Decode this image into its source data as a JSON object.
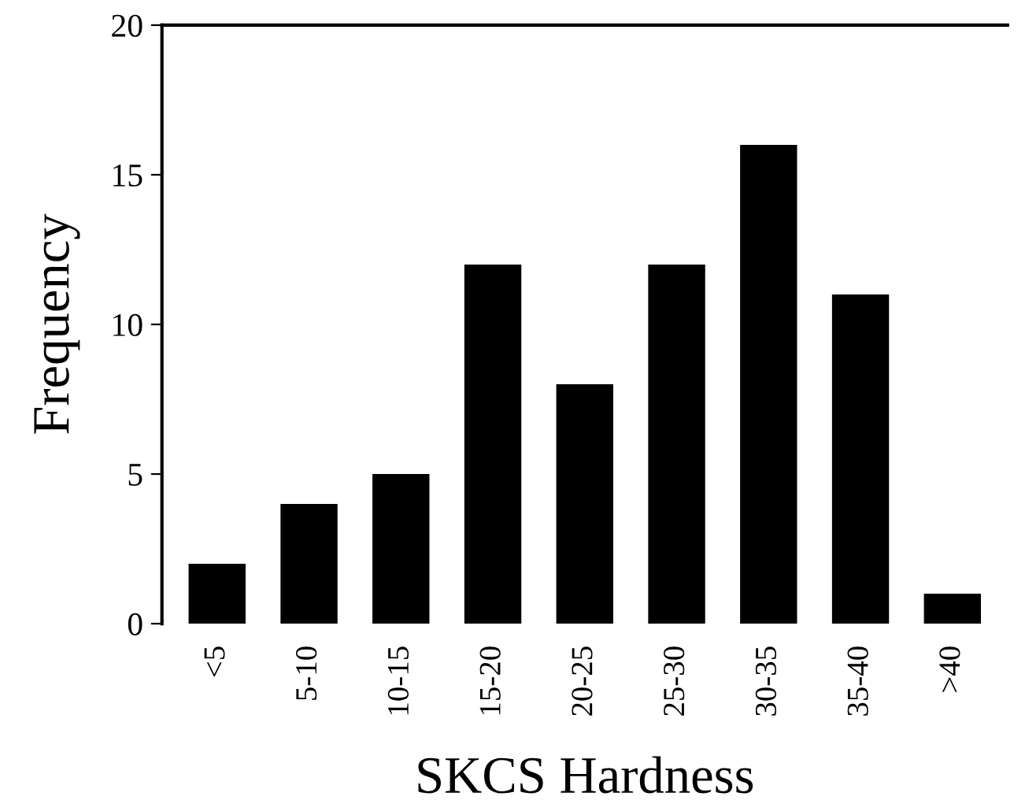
{
  "chart_data": {
    "type": "bar",
    "xlabel": "SKCS Hardness",
    "ylabel": "Frequency",
    "categories": [
      "<5",
      "5-10",
      "10-15",
      "15-20",
      "20-25",
      "25-30",
      "30-35",
      "35-40",
      ">40"
    ],
    "values": [
      2,
      4,
      5,
      12,
      8,
      12,
      16,
      11,
      1
    ],
    "color": "#000000",
    "ylim": [
      0,
      20
    ],
    "yticks": [
      0,
      5,
      10,
      15,
      20
    ],
    "grid": false,
    "legend": false
  }
}
